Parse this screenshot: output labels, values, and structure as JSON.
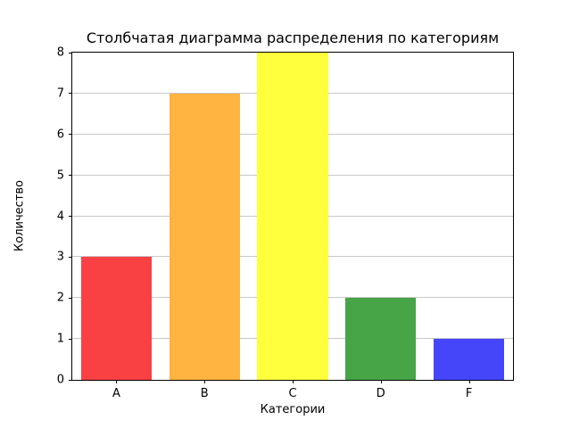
{
  "chart_data": {
    "type": "bar",
    "title": "Столбчатая диаграмма распределения по категориям",
    "xlabel": "Категории",
    "ylabel": "Количество",
    "categories": [
      "A",
      "B",
      "C",
      "D",
      "F"
    ],
    "values": [
      3,
      7,
      8,
      2,
      1
    ],
    "bar_colors": [
      "#f94144",
      "#ffb340",
      "#ffff3d",
      "#47a447",
      "#4545fa"
    ],
    "ylim": [
      0,
      8
    ],
    "yticks": [
      0,
      1,
      2,
      3,
      4,
      5,
      6,
      7,
      8
    ],
    "grid": true,
    "grid_color": "#c8c8c8",
    "legend": "none",
    "bar_width_fraction": 0.8
  }
}
